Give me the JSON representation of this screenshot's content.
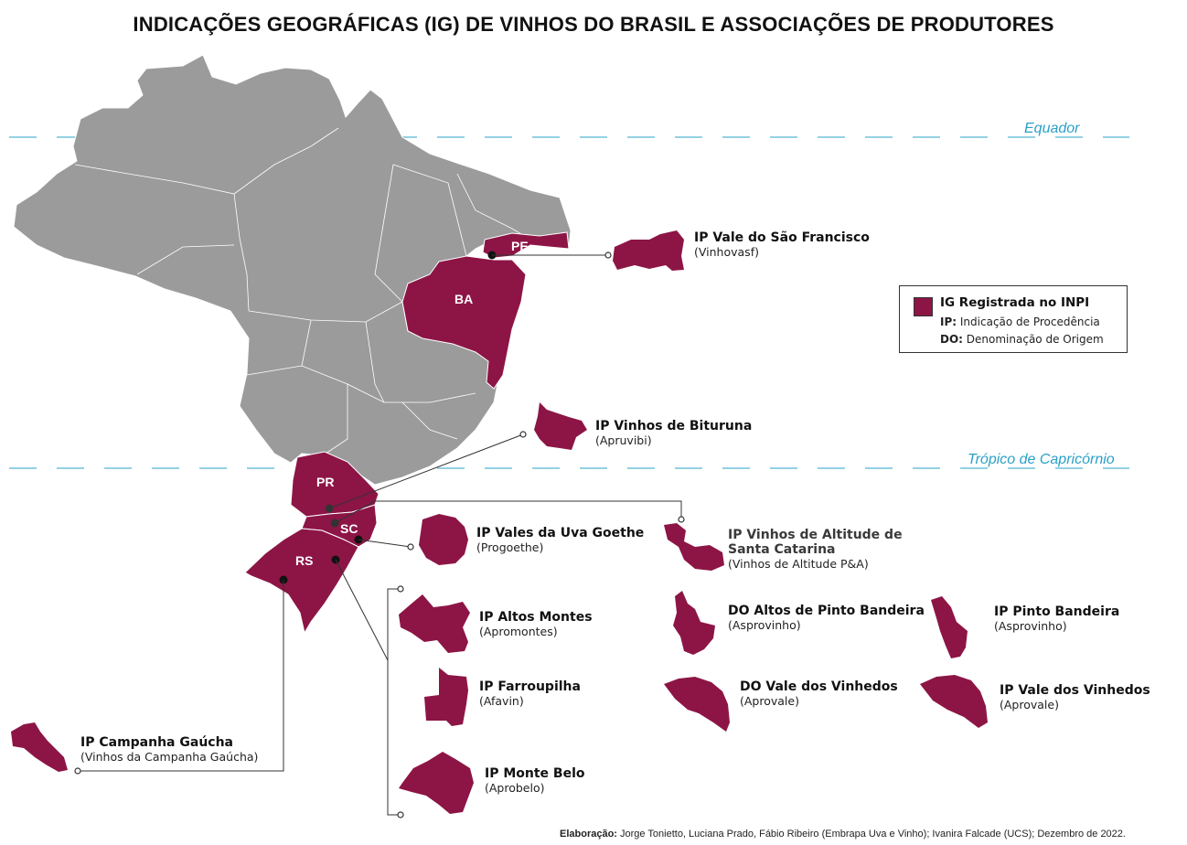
{
  "title": "INDICAÇÕES GEOGRÁFICAS (IG) DE VINHOS DO BRASIL E ASSOCIAÇÕES DE PRODUTORES",
  "reference_lines": {
    "equator": "Equador",
    "tropic": "Trópico de Capricórnio"
  },
  "states": {
    "pe": "PE",
    "ba": "BA",
    "pr": "PR",
    "sc": "SC",
    "rs": "RS"
  },
  "legend": {
    "title": "IG Registrada no INPI",
    "ip_code": "IP:",
    "ip_text": "Indicação de Procedência",
    "do_code": "DO:",
    "do_text": "Denominação de Origem"
  },
  "indications": {
    "sao_francisco": {
      "name": "IP Vale do São Francisco",
      "association": "(Vinhovasf)"
    },
    "bituruna": {
      "name": "IP Vinhos de Bituruna",
      "association": "(Apruvibi)"
    },
    "goethe": {
      "name": "IP Vales da Uva Goethe",
      "association": "(Progoethe)"
    },
    "altitude_sc": {
      "name_line1": "IP Vinhos de Altitude de",
      "name_line2": "Santa Catarina",
      "association": "(Vinhos de Altitude P&A)"
    },
    "altos_montes": {
      "name": "IP Altos Montes",
      "association": "(Apromontes)"
    },
    "do_pinto_bandeira": {
      "name": "DO Altos de Pinto Bandeira",
      "association": "(Asprovinho)"
    },
    "ip_pinto_bandeira": {
      "name": "IP Pinto Bandeira",
      "association": "(Asprovinho)"
    },
    "farroupilha": {
      "name": "IP Farroupilha",
      "association": "(Afavin)"
    },
    "do_vale_vinhedos": {
      "name": "DO Vale dos Vinhedos",
      "association": "(Aprovale)"
    },
    "ip_vale_vinhedos": {
      "name": "IP Vale dos Vinhedos",
      "association": "(Aprovale)"
    },
    "campanha": {
      "name": "IP Campanha Gaúcha",
      "association": "(Vinhos da Campanha Gaúcha)"
    },
    "monte_belo": {
      "name": "IP Monte Belo",
      "association": "(Aprobelo)"
    }
  },
  "credits": {
    "label": "Elaboração:",
    "text": "Jorge Tonietto, Luciana Prado, Fábio Ribeiro (Embrapa Uva e Vinho); Ivanira Falcade (UCS); Dezembro de 2022."
  },
  "colors": {
    "highlight": "#8d1546",
    "land": "#9b9b9b",
    "reference_line": "#2aa0c8"
  }
}
